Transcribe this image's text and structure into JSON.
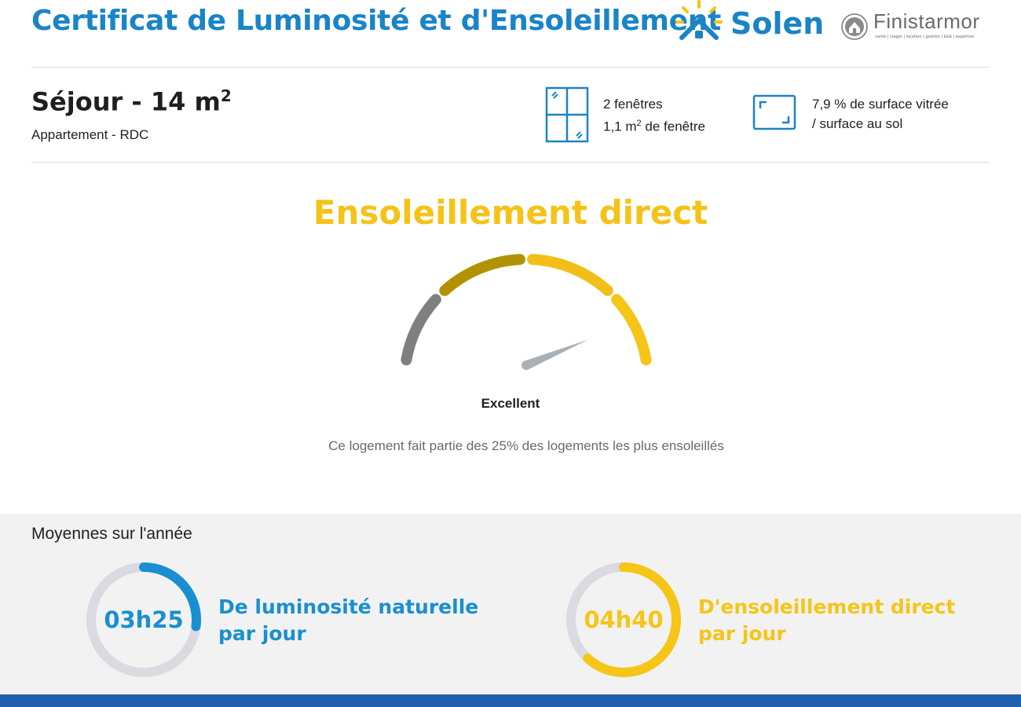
{
  "header": {
    "title": "Certificat de Luminosité et d'Ensoleillement",
    "brand": "Solen",
    "partner": "Finistarmor",
    "partner_tagline": "vente | viager | location | gestion | b&b | expertise"
  },
  "room": {
    "name": "Séjour - 14 m",
    "area_exponent": "2",
    "type": "Appartement - RDC",
    "windows_count": "2 fenêtres",
    "window_area": "1,1 m",
    "window_area_exponent": "2",
    "window_area_suffix": " de fenêtre",
    "glazing_ratio": "7,9 % de surface vitrée",
    "glazing_ratio_suffix": "/ surface au sol"
  },
  "gauge": {
    "title": "Ensoleillement direct",
    "level": "Excellent",
    "level_index": 4,
    "levels": 4,
    "description": "Ce logement fait partie des 25% des logements les plus ensoleillés",
    "colors": [
      "#7f7f7f",
      "#b19300",
      "#f2bf1a",
      "#f5c518"
    ]
  },
  "stats": {
    "title": "Moyennes sur l'année",
    "items": [
      {
        "value": "03h25",
        "label_line1": "De luminosité naturelle",
        "label_line2": "par jour",
        "color": "#1a8fd0",
        "fraction": 0.27
      },
      {
        "value": "04h40",
        "label_line1": "D'ensoleillement direct",
        "label_line2": "par jour",
        "color": "#f5c518",
        "fraction": 0.62
      }
    ]
  },
  "colors": {
    "primary": "#1a84c7",
    "sun": "#f5c218",
    "ring_track": "#d9dbe0",
    "footer": "#1f5fae"
  }
}
